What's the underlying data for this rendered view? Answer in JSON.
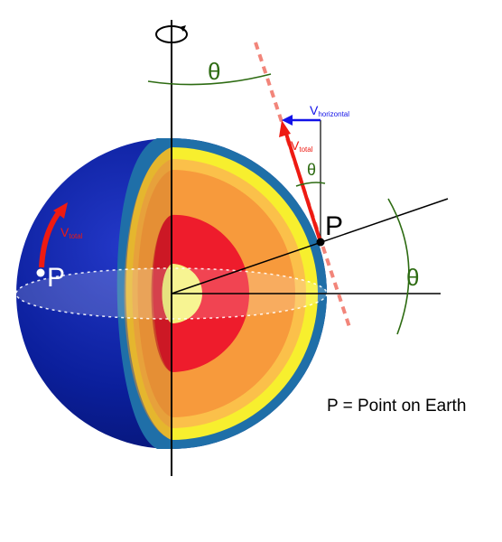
{
  "labels": {
    "theta_top": "θ",
    "theta_mid": "θ",
    "theta_right": "θ",
    "p_left": "P",
    "p_right": "P",
    "v_total_left_main": "V",
    "v_total_left_sub": "total",
    "v_total_right_main": "V",
    "v_total_right_sub": "total",
    "v_horizontal_main": "V",
    "v_horizontal_sub": "horizontal",
    "legend": "P = Point on Earth"
  },
  "icons": {
    "rotation": "rotation-arrow-icon"
  },
  "colors": {
    "mantle_outer": "#0b1f9c",
    "crust": "#1f6fa8",
    "layer_yellow": "#f7ef2e",
    "layer_light_orange": "#fbc04a",
    "layer_orange": "#f79a3c",
    "outer_core": "#ee1c2c",
    "inner_core": "#f6f27a",
    "angle_green": "#2d6b12",
    "velocity_red": "#ee1a12",
    "horizontal_blue": "#1212e8",
    "tangent_salmon": "#f2857a"
  }
}
